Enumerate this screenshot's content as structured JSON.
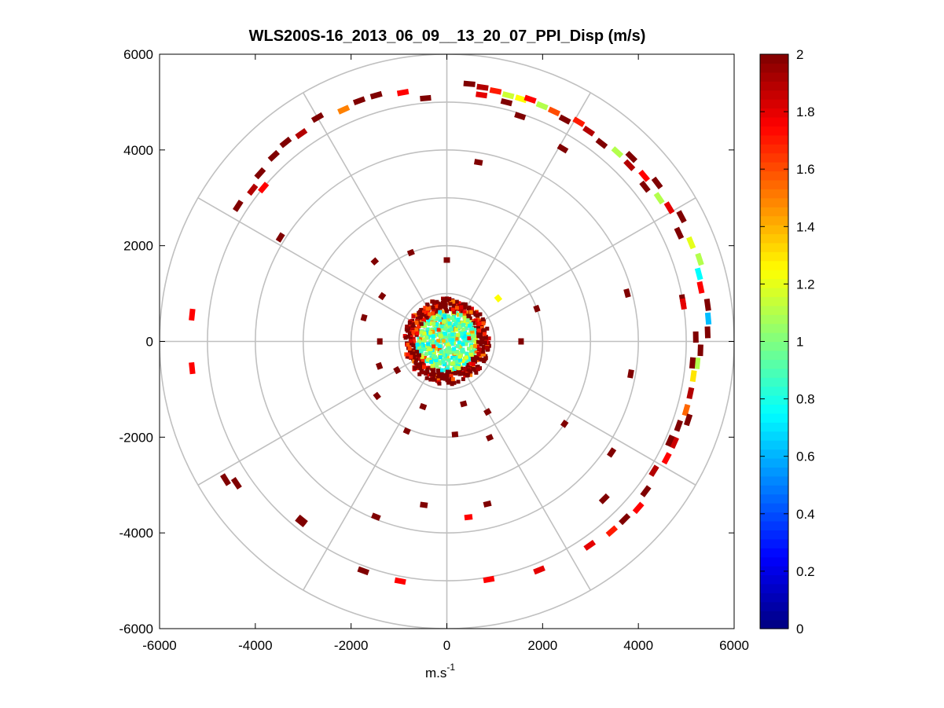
{
  "chart_data": {
    "type": "heatmap",
    "subtype": "polar-ppi",
    "title": "WLS200S-16_2013_06_09__13_20_07_PPI_Disp (m/s)",
    "xlabel": "m.s",
    "xlabel_superscript": "-1",
    "ylabel": "",
    "xlim": [
      -6000,
      6000
    ],
    "ylim": [
      -6000,
      6000
    ],
    "xticks": [
      -6000,
      -4000,
      -2000,
      0,
      2000,
      4000,
      6000
    ],
    "yticks": [
      -6000,
      -4000,
      -2000,
      0,
      2000,
      4000,
      6000
    ],
    "range_rings": [
      1000,
      2000,
      3000,
      4000,
      5000,
      6000
    ],
    "spoke_angles_deg": [
      0,
      30,
      60,
      90,
      120,
      150,
      180,
      210,
      240,
      270,
      300,
      330
    ],
    "colorbar": {
      "min": 0,
      "max": 2,
      "ticks": [
        0,
        0.2,
        0.4,
        0.6,
        0.8,
        1,
        1.2,
        1.4,
        1.6,
        1.8,
        2
      ],
      "colormap": "jet"
    },
    "colors": {
      "grid": "#c0c0c0",
      "axis": "#000000",
      "background": "#ffffff"
    },
    "near_field": {
      "max_range": 900,
      "typical_value": 0.95
    },
    "cells": [
      {
        "angle": 5,
        "r": 5400,
        "value": 2.0
      },
      {
        "angle": 8,
        "r": 5360,
        "value": 1.9
      },
      {
        "angle": 11,
        "r": 5330,
        "value": 1.7
      },
      {
        "angle": 14,
        "r": 5300,
        "value": 1.15
      },
      {
        "angle": 17,
        "r": 5300,
        "value": 1.25
      },
      {
        "angle": 19,
        "r": 5350,
        "value": 1.75
      },
      {
        "angle": 22,
        "r": 5310,
        "value": 1.1
      },
      {
        "angle": 25,
        "r": 5300,
        "value": 1.6
      },
      {
        "angle": 28,
        "r": 5250,
        "value": 2.0
      },
      {
        "angle": 31,
        "r": 5350,
        "value": 1.7
      },
      {
        "angle": 34,
        "r": 5300,
        "value": 1.9
      },
      {
        "angle": 38,
        "r": 5250,
        "value": 2.0
      },
      {
        "angle": 42,
        "r": 5320,
        "value": 1.1
      },
      {
        "angle": 46,
        "r": 5300,
        "value": 1.9
      },
      {
        "angle": 50,
        "r": 5380,
        "value": 1.75
      },
      {
        "angle": 53,
        "r": 5500,
        "value": 2.0
      },
      {
        "angle": 56,
        "r": 5350,
        "value": 1.1
      },
      {
        "angle": 59,
        "r": 5420,
        "value": 1.8
      },
      {
        "angle": 62,
        "r": 5550,
        "value": 2.0
      },
      {
        "angle": 65,
        "r": 5350,
        "value": 2.0
      },
      {
        "angle": 68,
        "r": 5500,
        "value": 1.2
      },
      {
        "angle": 72,
        "r": 5550,
        "value": 1.1
      },
      {
        "angle": 75,
        "r": 5450,
        "value": 0.75
      },
      {
        "angle": 78,
        "r": 5420,
        "value": 1.75
      },
      {
        "angle": 82,
        "r": 5500,
        "value": 2.0
      },
      {
        "angle": 85,
        "r": 5480,
        "value": 0.62
      },
      {
        "angle": 88,
        "r": 5450,
        "value": 2.0
      },
      {
        "angle": 89,
        "r": 5200,
        "value": 2.0
      },
      {
        "angle": 92,
        "r": 5300,
        "value": 2.0
      },
      {
        "angle": 95,
        "r": 5250,
        "value": 1.1
      },
      {
        "angle": 98,
        "r": 5200,
        "value": 1.3
      },
      {
        "angle": 102,
        "r": 5200,
        "value": 1.9
      },
      {
        "angle": 106,
        "r": 5200,
        "value": 1.55
      },
      {
        "angle": 110,
        "r": 5150,
        "value": 2.0
      },
      {
        "angle": 114,
        "r": 5200,
        "value": 1.85
      },
      {
        "angle": 118,
        "r": 5200,
        "value": 1.75
      },
      {
        "angle": 122,
        "r": 5100,
        "value": 1.9
      },
      {
        "angle": 127,
        "r": 5200,
        "value": 2.0
      },
      {
        "angle": 131,
        "r": 5300,
        "value": 1.75
      },
      {
        "angle": 135,
        "r": 5250,
        "value": 2.0
      },
      {
        "angle": 139,
        "r": 5250,
        "value": 1.7
      },
      {
        "angle": 145,
        "r": 5200,
        "value": 1.8
      },
      {
        "angle": 158,
        "r": 5150,
        "value": 1.8
      },
      {
        "angle": 170,
        "r": 5050,
        "value": 1.75
      },
      {
        "angle": 191,
        "r": 5100,
        "value": 1.75
      },
      {
        "angle": 200,
        "r": 5100,
        "value": 2.0
      },
      {
        "angle": 219,
        "r": 4850,
        "value": 2.0
      },
      {
        "angle": 236,
        "r": 5300,
        "value": 2.0
      },
      {
        "angle": 264,
        "r": 5350,
        "value": 1.75
      },
      {
        "angle": 303,
        "r": 5200,
        "value": 2.0
      },
      {
        "angle": 308,
        "r": 5150,
        "value": 1.9
      },
      {
        "angle": 312,
        "r": 5250,
        "value": 2.0
      },
      {
        "angle": 317,
        "r": 5300,
        "value": 2.0
      },
      {
        "angle": 321,
        "r": 5350,
        "value": 2.0
      },
      {
        "angle": 325,
        "r": 5300,
        "value": 1.9
      },
      {
        "angle": 330,
        "r": 5400,
        "value": 2.0
      },
      {
        "angle": 336,
        "r": 5300,
        "value": 1.5
      },
      {
        "angle": 340,
        "r": 5350,
        "value": 2.0
      },
      {
        "angle": 344,
        "r": 5350,
        "value": 2.0
      },
      {
        "angle": 350,
        "r": 5280,
        "value": 1.75
      },
      {
        "angle": 8,
        "r": 5200,
        "value": 1.8
      },
      {
        "angle": 355,
        "r": 5100,
        "value": 2.0
      },
      {
        "angle": 310,
        "r": 5000,
        "value": 1.75
      },
      {
        "angle": 18,
        "r": 4950,
        "value": 2.0
      },
      {
        "angle": 31,
        "r": 4700,
        "value": 2.0
      },
      {
        "angle": 45,
        "r": 5450,
        "value": 2.0
      },
      {
        "angle": 52,
        "r": 5250,
        "value": 2.0
      },
      {
        "angle": 80,
        "r": 5000,
        "value": 2.0
      },
      {
        "angle": 81,
        "r": 5000,
        "value": 1.8
      },
      {
        "angle": 95,
        "r": 5150,
        "value": 2.0
      },
      {
        "angle": 108,
        "r": 5300,
        "value": 2.0
      },
      {
        "angle": 114,
        "r": 5100,
        "value": 2.0
      },
      {
        "angle": 124,
        "r": 4150,
        "value": 2.0
      },
      {
        "angle": 135,
        "r": 4650,
        "value": 2.0
      },
      {
        "angle": 166,
        "r": 3500,
        "value": 2.0
      },
      {
        "angle": 173,
        "r": 3700,
        "value": 1.75
      },
      {
        "angle": 188,
        "r": 3450,
        "value": 2.0
      },
      {
        "angle": 202,
        "r": 3950,
        "value": 2.0
      },
      {
        "angle": 219,
        "r": 4800,
        "value": 2.0
      },
      {
        "angle": 238,
        "r": 5450,
        "value": 2.0
      },
      {
        "angle": 276,
        "r": 5350,
        "value": 1.75
      },
      {
        "angle": 302,
        "r": 4100,
        "value": 2.0
      },
      {
        "angle": 0,
        "r": 1700,
        "value": 2.0
      },
      {
        "angle": 10,
        "r": 3800,
        "value": 2.0
      },
      {
        "angle": 14,
        "r": 5150,
        "value": 2.0
      },
      {
        "angle": 75,
        "r": 3900,
        "value": 2.0
      },
      {
        "angle": 100,
        "r": 3900,
        "value": 2.0
      },
      {
        "angle": 125,
        "r": 3000,
        "value": 2.0
      },
      {
        "angle": 156,
        "r": 2200,
        "value": 2.0
      },
      {
        "angle": 204,
        "r": 2050,
        "value": 2.0
      },
      {
        "angle": 240,
        "r": 1200,
        "value": 2.0
      },
      {
        "angle": 286,
        "r": 1800,
        "value": 2.0
      },
      {
        "angle": 305,
        "r": 1650,
        "value": 2.0
      },
      {
        "angle": 318,
        "r": 2250,
        "value": 2.0
      },
      {
        "angle": 338,
        "r": 2000,
        "value": 2.0
      },
      {
        "angle": 50,
        "r": 1400,
        "value": 1.25
      },
      {
        "angle": 70,
        "r": 2000,
        "value": 2.0
      },
      {
        "angle": 250,
        "r": 1500,
        "value": 2.0
      },
      {
        "angle": 232,
        "r": 1850,
        "value": 2.0
      },
      {
        "angle": 175,
        "r": 1950,
        "value": 2.0
      },
      {
        "angle": 165,
        "r": 1350,
        "value": 2.0
      },
      {
        "angle": 90,
        "r": 1550,
        "value": 2.0
      },
      {
        "angle": 150,
        "r": 1700,
        "value": 2.0
      },
      {
        "angle": 200,
        "r": 1450,
        "value": 2.0
      },
      {
        "angle": 270,
        "r": 1400,
        "value": 2.0
      }
    ]
  }
}
